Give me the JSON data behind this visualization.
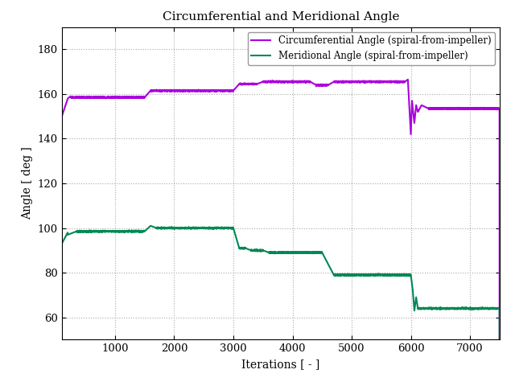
{
  "title": "Circumferential and Meridional Angle",
  "xlabel": "Iterations [ - ]",
  "ylabel": "Angle [ deg ]",
  "xlim": [
    100,
    7500
  ],
  "ylim": [
    50,
    190
  ],
  "yticks": [
    60,
    80,
    100,
    120,
    140,
    160,
    180
  ],
  "xticks": [
    1000,
    2000,
    3000,
    4000,
    5000,
    6000,
    7000
  ],
  "circ_color": "#aa00dd",
  "merid_color": "#008855",
  "circ_label": "Circumferential Angle (spiral-from-impeller)",
  "merid_label": "Meridional Angle (spiral-from-impeller)",
  "background_color": "#ffffff",
  "grid_color": "#aaaaaa"
}
